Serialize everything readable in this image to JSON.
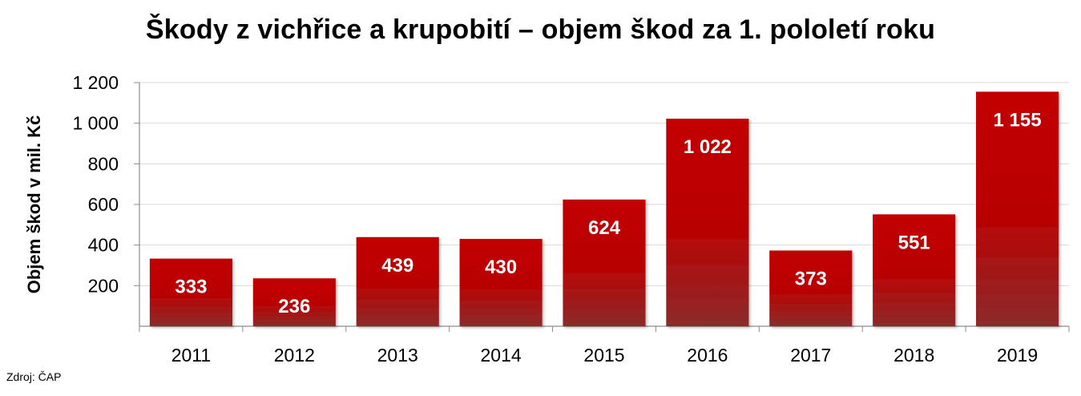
{
  "title": "Škody z vichřice a krupobití – objem škod za 1. pololetí roku",
  "source": "Zdroj: ČAP",
  "colors": {
    "bar_top": "#c20000",
    "bar_bottom": "#8c2b2b",
    "grid": "#d9d9d9",
    "axis": "#8c8c8c"
  },
  "chart_data": {
    "type": "bar",
    "title": "Škody z vichřice a krupobití – objem škod za 1. pololetí roku",
    "xlabel": "",
    "ylabel": "Objem škod v mil. Kč",
    "categories": [
      "2011",
      "2012",
      "2013",
      "2014",
      "2015",
      "2016",
      "2017",
      "2018",
      "2019"
    ],
    "values": [
      333,
      236,
      439,
      430,
      624,
      1022,
      373,
      551,
      1155
    ],
    "data_labels": [
      "333",
      "236",
      "439",
      "430",
      "624",
      "1 022",
      "373",
      "551",
      "1 155"
    ],
    "ylim": [
      0,
      1200
    ],
    "yticks": [
      200,
      400,
      600,
      800,
      1000,
      1200
    ],
    "ytick_labels": [
      "200",
      "400",
      "600",
      "800",
      "1 000",
      "1 200"
    ],
    "grid": true,
    "legend": "none"
  }
}
